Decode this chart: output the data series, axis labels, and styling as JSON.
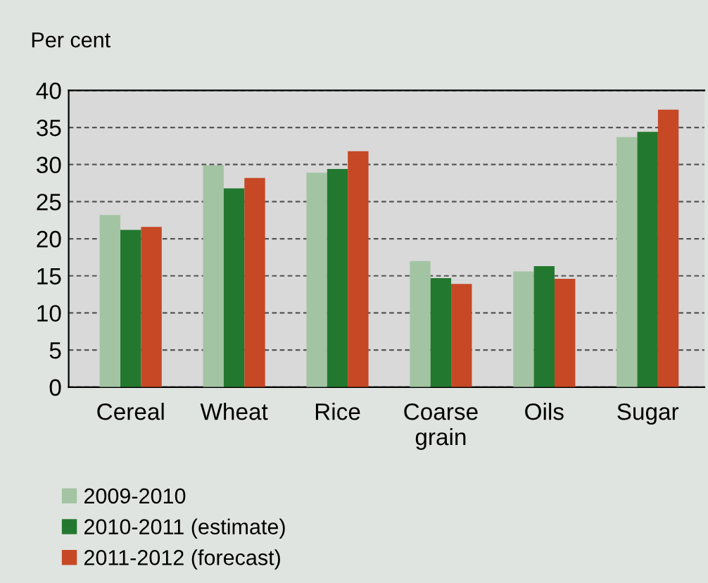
{
  "chart_data": {
    "type": "bar",
    "ylabel": "Per cent",
    "categories": [
      "Cereal",
      "Wheat",
      "Rice",
      "Coarse\ngrain",
      "Oils",
      "Sugar"
    ],
    "series": [
      {
        "name": "2009-2010",
        "color": "#a3c4a3",
        "values": [
          23.2,
          29.9,
          28.9,
          17.0,
          15.6,
          33.7
        ]
      },
      {
        "name": "2010-2011 (estimate)",
        "color": "#23782f",
        "values": [
          21.2,
          26.8,
          29.4,
          14.7,
          16.3,
          34.4
        ]
      },
      {
        "name": "2011-2012 (forecast)",
        "color": "#c64825",
        "values": [
          21.6,
          28.2,
          31.8,
          13.9,
          14.6,
          37.4
        ]
      }
    ],
    "ylim": [
      0,
      40
    ],
    "yticks": [
      0,
      5,
      10,
      15,
      20,
      25,
      30,
      35,
      40
    ],
    "grid": "y",
    "legend": "bottom left"
  }
}
